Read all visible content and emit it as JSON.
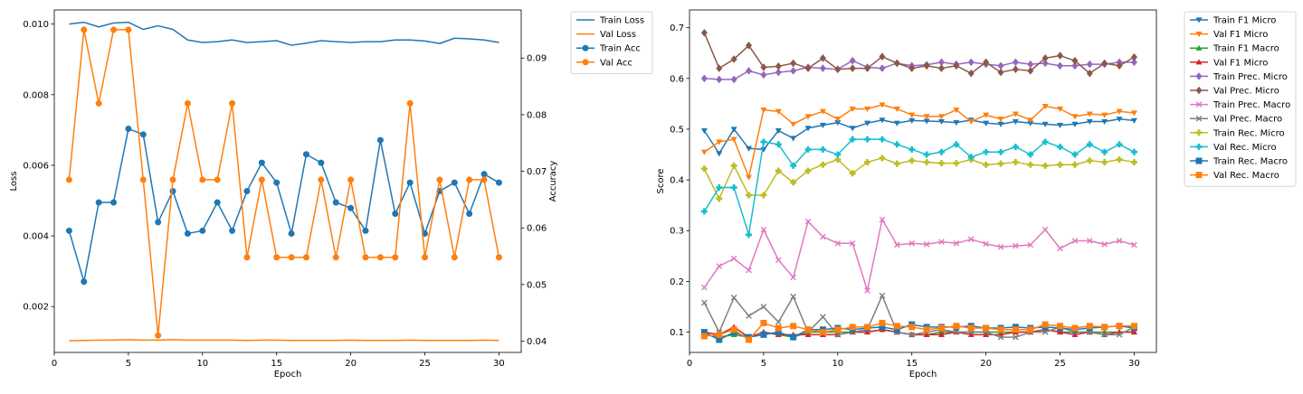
{
  "chart_data": [
    {
      "type": "line",
      "xlabel": "Epoch",
      "ylabel_left": "Loss",
      "ylabel_right": "Accuracy",
      "xlim": [
        0,
        31.5
      ],
      "ylim_left": [
        0.0007,
        0.0104
      ],
      "ylim_right": [
        0.038,
        0.0985
      ],
      "xticks": [
        0,
        5,
        10,
        15,
        20,
        25,
        30
      ],
      "yticks_left": [
        0.002,
        0.004,
        0.006,
        0.008,
        0.01
      ],
      "yticks_left_labels": [
        "0.002",
        "0.004",
        "0.006",
        "0.008",
        "0.010"
      ],
      "yticks_right": [
        0.04,
        0.05,
        0.06,
        0.07,
        0.08,
        0.09
      ],
      "yticks_right_labels": [
        "0.04",
        "0.05",
        "0.06",
        "0.07",
        "0.08",
        "0.09"
      ],
      "grid": false,
      "legend_position": "outside-right",
      "x": [
        1,
        2,
        3,
        4,
        5,
        6,
        7,
        8,
        9,
        10,
        11,
        12,
        13,
        14,
        15,
        16,
        17,
        18,
        19,
        20,
        21,
        22,
        23,
        24,
        25,
        26,
        27,
        28,
        29,
        30
      ],
      "series": [
        {
          "name": "Train Loss",
          "axis": "left",
          "color": "#1f77b4",
          "marker": "none",
          "values": [
            0.01,
            0.01005,
            0.00992,
            0.01003,
            0.01005,
            0.00985,
            0.00995,
            0.00985,
            0.00955,
            0.00948,
            0.0095,
            0.00955,
            0.00948,
            0.0095,
            0.00953,
            0.0094,
            0.00946,
            0.00953,
            0.0095,
            0.00948,
            0.0095,
            0.0095,
            0.00955,
            0.00955,
            0.00952,
            0.00945,
            0.0096,
            0.00958,
            0.00955,
            0.00948
          ]
        },
        {
          "name": "Val Loss",
          "axis": "left",
          "color": "#ff7f0e",
          "marker": "none",
          "values": [
            0.00103,
            0.00104,
            0.00105,
            0.00105,
            0.00106,
            0.00105,
            0.00105,
            0.00106,
            0.00105,
            0.00105,
            0.00105,
            0.00105,
            0.00104,
            0.00105,
            0.00105,
            0.00104,
            0.00104,
            0.00104,
            0.00104,
            0.00105,
            0.00104,
            0.00104,
            0.00104,
            0.00105,
            0.00104,
            0.00104,
            0.00104,
            0.00104,
            0.00105,
            0.00104
          ]
        },
        {
          "name": "Train Acc",
          "axis": "right",
          "color": "#1f77b4",
          "marker": "circle",
          "values": [
            0.0595,
            0.0505,
            0.0645,
            0.0645,
            0.0775,
            0.0765,
            0.061,
            0.0665,
            0.059,
            0.0595,
            0.0645,
            0.0595,
            0.0665,
            0.0715,
            0.068,
            0.059,
            0.073,
            0.0715,
            0.0645,
            0.0635,
            0.0595,
            0.0755,
            0.0625,
            0.068,
            0.059,
            0.0665,
            0.068,
            0.0625,
            0.0695,
            0.068
          ]
        },
        {
          "name": "Val Acc",
          "axis": "right",
          "color": "#ff7f0e",
          "marker": "circle",
          "values": [
            0.0685,
            0.095,
            0.082,
            0.095,
            0.095,
            0.0685,
            0.041,
            0.0685,
            0.082,
            0.0685,
            0.0685,
            0.082,
            0.0548,
            0.0685,
            0.0548,
            0.0548,
            0.0548,
            0.0685,
            0.0548,
            0.0685,
            0.0548,
            0.0548,
            0.0548,
            0.082,
            0.0548,
            0.0685,
            0.0548,
            0.0685,
            0.0685,
            0.0548
          ]
        }
      ]
    },
    {
      "type": "line",
      "xlabel": "Epoch",
      "ylabel": "Score",
      "xlim": [
        0,
        31.5
      ],
      "ylim": [
        0.06,
        0.735
      ],
      "xticks": [
        0,
        5,
        10,
        15,
        20,
        25,
        30
      ],
      "yticks": [
        0.1,
        0.2,
        0.3,
        0.4,
        0.5,
        0.6,
        0.7
      ],
      "yticks_labels": [
        "0.1",
        "0.2",
        "0.3",
        "0.4",
        "0.5",
        "0.6",
        "0.7"
      ],
      "grid": false,
      "legend_position": "outside-right",
      "x": [
        1,
        2,
        3,
        4,
        5,
        6,
        7,
        8,
        9,
        10,
        11,
        12,
        13,
        14,
        15,
        16,
        17,
        18,
        19,
        20,
        21,
        22,
        23,
        24,
        25,
        26,
        27,
        28,
        29,
        30
      ],
      "series": [
        {
          "name": "Train F1 Micro",
          "color": "#1f77b4",
          "marker": "triangle-down",
          "values": [
            0.497,
            0.452,
            0.5,
            0.462,
            0.46,
            0.497,
            0.482,
            0.502,
            0.508,
            0.513,
            0.502,
            0.512,
            0.518,
            0.512,
            0.517,
            0.516,
            0.515,
            0.513,
            0.518,
            0.512,
            0.51,
            0.515,
            0.512,
            0.51,
            0.508,
            0.51,
            0.515,
            0.515,
            0.52,
            0.517
          ]
        },
        {
          "name": "Val F1 Micro",
          "color": "#ff7f0e",
          "marker": "triangle-down",
          "values": [
            0.455,
            0.475,
            0.48,
            0.405,
            0.538,
            0.535,
            0.51,
            0.525,
            0.535,
            0.52,
            0.54,
            0.54,
            0.548,
            0.54,
            0.528,
            0.525,
            0.525,
            0.538,
            0.515,
            0.528,
            0.52,
            0.53,
            0.518,
            0.545,
            0.54,
            0.525,
            0.53,
            0.528,
            0.535,
            0.532
          ]
        },
        {
          "name": "Train F1 Macro",
          "color": "#2ca02c",
          "marker": "triangle-up",
          "values": [
            0.095,
            0.09,
            0.095,
            0.09,
            0.1,
            0.095,
            0.09,
            0.1,
            0.1,
            0.1,
            0.1,
            0.1,
            0.105,
            0.1,
            0.095,
            0.095,
            0.1,
            0.1,
            0.1,
            0.1,
            0.1,
            0.1,
            0.1,
            0.105,
            0.1,
            0.1,
            0.1,
            0.1,
            0.1,
            0.1
          ]
        },
        {
          "name": "Val F1 Micro",
          "color": "#d62728",
          "marker": "triangle-up",
          "values": [
            0.1,
            0.095,
            0.11,
            0.09,
            0.1,
            0.095,
            0.095,
            0.095,
            0.095,
            0.095,
            0.1,
            0.1,
            0.105,
            0.1,
            0.095,
            0.095,
            0.095,
            0.1,
            0.095,
            0.095,
            0.095,
            0.1,
            0.1,
            0.105,
            0.1,
            0.095,
            0.1,
            0.095,
            0.1,
            0.1
          ]
        },
        {
          "name": "Train Prec. Micro",
          "color": "#9467bd",
          "marker": "diamond",
          "values": [
            0.6,
            0.598,
            0.598,
            0.615,
            0.607,
            0.612,
            0.615,
            0.622,
            0.62,
            0.618,
            0.635,
            0.622,
            0.62,
            0.63,
            0.625,
            0.627,
            0.632,
            0.628,
            0.632,
            0.628,
            0.625,
            0.632,
            0.628,
            0.63,
            0.625,
            0.625,
            0.628,
            0.628,
            0.632,
            0.632
          ]
        },
        {
          "name": "Val Prec. Micro",
          "color": "#8c564b",
          "marker": "diamond",
          "values": [
            0.69,
            0.62,
            0.638,
            0.665,
            0.622,
            0.624,
            0.63,
            0.62,
            0.64,
            0.618,
            0.62,
            0.62,
            0.643,
            0.63,
            0.62,
            0.625,
            0.62,
            0.625,
            0.61,
            0.632,
            0.612,
            0.618,
            0.615,
            0.64,
            0.645,
            0.635,
            0.61,
            0.63,
            0.625,
            0.642
          ]
        },
        {
          "name": "Train Prec. Macro",
          "color": "#e377c2",
          "marker": "x",
          "values": [
            0.188,
            0.23,
            0.245,
            0.222,
            0.302,
            0.242,
            0.208,
            0.318,
            0.288,
            0.275,
            0.275,
            0.182,
            0.322,
            0.272,
            0.275,
            0.273,
            0.278,
            0.275,
            0.283,
            0.274,
            0.268,
            0.27,
            0.272,
            0.302,
            0.265,
            0.28,
            0.28,
            0.273,
            0.28,
            0.272
          ]
        },
        {
          "name": "Val Prec. Macro",
          "color": "#7f7f7f",
          "marker": "x",
          "values": [
            0.158,
            0.1,
            0.168,
            0.132,
            0.15,
            0.12,
            0.17,
            0.1,
            0.13,
            0.095,
            0.1,
            0.105,
            0.172,
            0.1,
            0.095,
            0.1,
            0.105,
            0.1,
            0.1,
            0.1,
            0.09,
            0.09,
            0.1,
            0.1,
            0.11,
            0.1,
            0.1,
            0.095,
            0.095,
            0.11
          ]
        },
        {
          "name": "Train Rec. Micro",
          "color": "#bcbd22",
          "marker": "plus",
          "values": [
            0.422,
            0.363,
            0.428,
            0.37,
            0.37,
            0.418,
            0.395,
            0.418,
            0.43,
            0.44,
            0.413,
            0.435,
            0.443,
            0.432,
            0.438,
            0.435,
            0.433,
            0.433,
            0.44,
            0.43,
            0.432,
            0.435,
            0.43,
            0.428,
            0.43,
            0.43,
            0.438,
            0.435,
            0.44,
            0.435
          ]
        },
        {
          "name": "Val Rec. Micro",
          "color": "#17becf",
          "marker": "plus",
          "values": [
            0.338,
            0.385,
            0.385,
            0.292,
            0.475,
            0.47,
            0.428,
            0.46,
            0.46,
            0.45,
            0.48,
            0.48,
            0.48,
            0.47,
            0.46,
            0.45,
            0.455,
            0.47,
            0.445,
            0.455,
            0.455,
            0.465,
            0.45,
            0.475,
            0.465,
            0.45,
            0.47,
            0.455,
            0.47,
            0.455
          ]
        },
        {
          "name": "Train Rec. Macro",
          "color": "#1f77b4",
          "marker": "square",
          "values": [
            0.1,
            0.085,
            0.1,
            0.09,
            0.095,
            0.1,
            0.09,
            0.105,
            0.105,
            0.108,
            0.105,
            0.108,
            0.11,
            0.105,
            0.115,
            0.11,
            0.11,
            0.11,
            0.112,
            0.108,
            0.108,
            0.11,
            0.108,
            0.11,
            0.108,
            0.105,
            0.108,
            0.11,
            0.112,
            0.108
          ]
        },
        {
          "name": "Val Rec. Macro",
          "color": "#ff7f0e",
          "marker": "square",
          "values": [
            0.092,
            0.095,
            0.105,
            0.085,
            0.118,
            0.108,
            0.112,
            0.105,
            0.1,
            0.105,
            0.11,
            0.11,
            0.118,
            0.112,
            0.11,
            0.105,
            0.108,
            0.112,
            0.108,
            0.108,
            0.105,
            0.105,
            0.105,
            0.115,
            0.112,
            0.108,
            0.112,
            0.11,
            0.112,
            0.112
          ]
        }
      ]
    }
  ]
}
